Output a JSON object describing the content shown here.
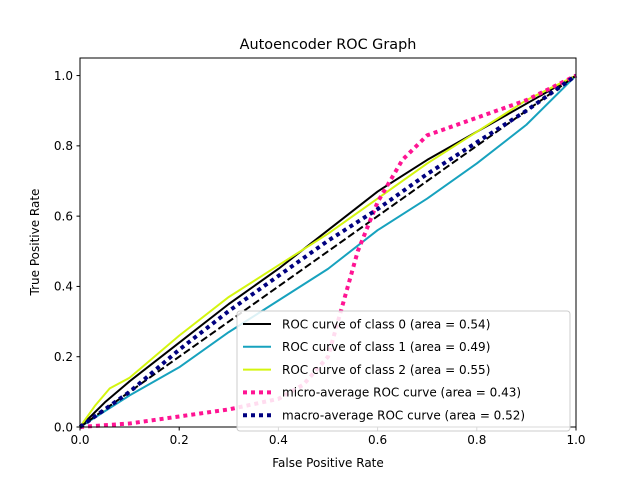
{
  "chart_data": {
    "type": "line",
    "title": "Autoencoder ROC Graph",
    "xlabel": "False Positive Rate",
    "ylabel": "True Positive Rate",
    "xlim": [
      0.0,
      1.0
    ],
    "ylim": [
      0.0,
      1.05
    ],
    "xticks": [
      0.0,
      0.2,
      0.4,
      0.6,
      0.8,
      1.0
    ],
    "xtick_labels": [
      "0.0",
      "0.2",
      "0.4",
      "0.6",
      "0.8",
      "1.0"
    ],
    "yticks": [
      0.0,
      0.2,
      0.4,
      0.6,
      0.8,
      1.0
    ],
    "ytick_labels": [
      "0.0",
      "0.2",
      "0.4",
      "0.6",
      "0.8",
      "1.0"
    ],
    "grid": false,
    "legend_position": "lower-right",
    "series": [
      {
        "name": "ROC curve of class 0 (area = 0.54)",
        "color": "#000000",
        "style": "solid",
        "x": [
          0.0,
          0.05,
          0.1,
          0.2,
          0.3,
          0.4,
          0.5,
          0.6,
          0.7,
          0.8,
          0.9,
          1.0
        ],
        "y": [
          0.0,
          0.07,
          0.13,
          0.24,
          0.35,
          0.45,
          0.56,
          0.67,
          0.76,
          0.84,
          0.92,
          1.0
        ]
      },
      {
        "name": "ROC curve of class 1 (area = 0.49)",
        "color": "#17a2be",
        "style": "solid",
        "x": [
          0.0,
          0.1,
          0.2,
          0.3,
          0.4,
          0.5,
          0.6,
          0.7,
          0.8,
          0.9,
          1.0
        ],
        "y": [
          0.0,
          0.09,
          0.17,
          0.27,
          0.36,
          0.45,
          0.56,
          0.65,
          0.75,
          0.86,
          1.0
        ]
      },
      {
        "name": "ROC curve of class 2 (area = 0.55)",
        "color": "#d4f50f",
        "style": "solid",
        "x": [
          0.0,
          0.03,
          0.06,
          0.1,
          0.2,
          0.3,
          0.4,
          0.5,
          0.6,
          0.7,
          0.8,
          0.9,
          1.0
        ],
        "y": [
          0.0,
          0.06,
          0.11,
          0.14,
          0.26,
          0.37,
          0.46,
          0.55,
          0.65,
          0.75,
          0.84,
          0.93,
          1.0
        ]
      },
      {
        "name": "micro-average ROC curve (area = 0.43)",
        "color": "#ff1493",
        "style": "dotted",
        "x": [
          0.0,
          0.1,
          0.2,
          0.3,
          0.4,
          0.45,
          0.5,
          0.53,
          0.56,
          0.6,
          0.65,
          0.7,
          0.8,
          0.9,
          1.0
        ],
        "y": [
          0.0,
          0.01,
          0.03,
          0.05,
          0.08,
          0.12,
          0.2,
          0.35,
          0.5,
          0.64,
          0.76,
          0.83,
          0.88,
          0.93,
          1.0
        ]
      },
      {
        "name": "macro-average ROC curve (area = 0.52)",
        "color": "#000080",
        "style": "dotted",
        "x": [
          0.0,
          0.1,
          0.2,
          0.3,
          0.4,
          0.5,
          0.6,
          0.7,
          0.8,
          0.9,
          1.0
        ],
        "y": [
          0.0,
          0.1,
          0.22,
          0.33,
          0.43,
          0.53,
          0.62,
          0.72,
          0.81,
          0.9,
          1.0
        ]
      }
    ],
    "reference_line": {
      "color": "#000000",
      "style": "dashed",
      "x": [
        0.0,
        1.0
      ],
      "y": [
        0.0,
        1.0
      ]
    }
  }
}
